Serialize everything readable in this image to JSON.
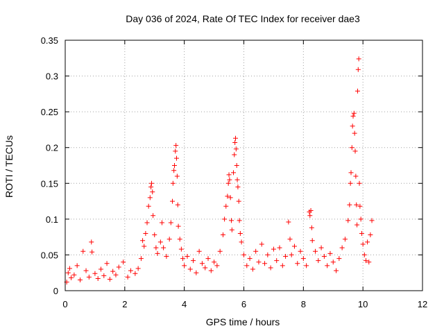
{
  "chart_data": {
    "type": "scatter",
    "title": "Day 036 of 2024, Rate Of TEC Index for receiver dae3",
    "xlabel": "GPS time / hours",
    "ylabel": "ROTI / TECUs",
    "xlim": [
      0,
      12
    ],
    "ylim": [
      0,
      0.35
    ],
    "x_ticks": [
      "0",
      "2",
      "4",
      "6",
      "8",
      "10",
      "12"
    ],
    "y_ticks": [
      "0",
      "0.05",
      "0.1",
      "0.15",
      "0.2",
      "0.25",
      "0.3",
      "0.35"
    ],
    "x_tick_values": [
      0,
      2,
      4,
      6,
      8,
      10,
      12
    ],
    "y_tick_values": [
      0,
      0.05,
      0.1,
      0.15,
      0.2,
      0.25,
      0.3,
      0.35
    ],
    "grid": true,
    "marker": "+",
    "color": "#ff0000",
    "series": [
      {
        "name": "ROTI",
        "points": [
          [
            0.05,
            0.012
          ],
          [
            0.1,
            0.025
          ],
          [
            0.15,
            0.031
          ],
          [
            0.2,
            0.018
          ],
          [
            0.3,
            0.022
          ],
          [
            0.4,
            0.035
          ],
          [
            0.5,
            0.015
          ],
          [
            0.6,
            0.055
          ],
          [
            0.7,
            0.028
          ],
          [
            0.8,
            0.019
          ],
          [
            0.88,
            0.068
          ],
          [
            0.9,
            0.054
          ],
          [
            1.0,
            0.024
          ],
          [
            1.1,
            0.017
          ],
          [
            1.2,
            0.03
          ],
          [
            1.3,
            0.021
          ],
          [
            1.4,
            0.038
          ],
          [
            1.5,
            0.016
          ],
          [
            1.6,
            0.027
          ],
          [
            1.7,
            0.022
          ],
          [
            1.8,
            0.033
          ],
          [
            1.95,
            0.04
          ],
          [
            2.1,
            0.019
          ],
          [
            2.2,
            0.028
          ],
          [
            2.35,
            0.024
          ],
          [
            2.45,
            0.031
          ],
          [
            2.55,
            0.045
          ],
          [
            2.6,
            0.07
          ],
          [
            2.65,
            0.062
          ],
          [
            2.7,
            0.08
          ],
          [
            2.75,
            0.095
          ],
          [
            2.8,
            0.118
          ],
          [
            2.85,
            0.13
          ],
          [
            2.88,
            0.145
          ],
          [
            2.9,
            0.15
          ],
          [
            2.93,
            0.138
          ],
          [
            2.95,
            0.105
          ],
          [
            3.0,
            0.078
          ],
          [
            3.05,
            0.06
          ],
          [
            3.1,
            0.052
          ],
          [
            3.2,
            0.068
          ],
          [
            3.25,
            0.095
          ],
          [
            3.3,
            0.06
          ],
          [
            3.4,
            0.048
          ],
          [
            3.5,
            0.072
          ],
          [
            3.55,
            0.095
          ],
          [
            3.6,
            0.125
          ],
          [
            3.62,
            0.15
          ],
          [
            3.65,
            0.168
          ],
          [
            3.67,
            0.175
          ],
          [
            3.7,
            0.195
          ],
          [
            3.72,
            0.203
          ],
          [
            3.74,
            0.185
          ],
          [
            3.76,
            0.16
          ],
          [
            3.78,
            0.12
          ],
          [
            3.8,
            0.09
          ],
          [
            3.85,
            0.072
          ],
          [
            3.9,
            0.058
          ],
          [
            3.95,
            0.045
          ],
          [
            4.0,
            0.035
          ],
          [
            4.1,
            0.048
          ],
          [
            4.2,
            0.03
          ],
          [
            4.3,
            0.042
          ],
          [
            4.4,
            0.025
          ],
          [
            4.5,
            0.055
          ],
          [
            4.6,
            0.038
          ],
          [
            4.7,
            0.032
          ],
          [
            4.8,
            0.045
          ],
          [
            4.9,
            0.028
          ],
          [
            5.0,
            0.04
          ],
          [
            5.1,
            0.035
          ],
          [
            5.2,
            0.055
          ],
          [
            5.3,
            0.078
          ],
          [
            5.35,
            0.1
          ],
          [
            5.4,
            0.118
          ],
          [
            5.45,
            0.132
          ],
          [
            5.48,
            0.15
          ],
          [
            5.5,
            0.162
          ],
          [
            5.52,
            0.155
          ],
          [
            5.55,
            0.13
          ],
          [
            5.58,
            0.098
          ],
          [
            5.6,
            0.085
          ],
          [
            5.65,
            0.165
          ],
          [
            5.68,
            0.19
          ],
          [
            5.7,
            0.207
          ],
          [
            5.72,
            0.213
          ],
          [
            5.74,
            0.198
          ],
          [
            5.76,
            0.175
          ],
          [
            5.78,
            0.155
          ],
          [
            5.8,
            0.145
          ],
          [
            5.83,
            0.125
          ],
          [
            5.85,
            0.098
          ],
          [
            5.88,
            0.08
          ],
          [
            5.92,
            0.068
          ],
          [
            6.0,
            0.05
          ],
          [
            6.1,
            0.035
          ],
          [
            6.2,
            0.045
          ],
          [
            6.3,
            0.03
          ],
          [
            6.4,
            0.055
          ],
          [
            6.5,
            0.04
          ],
          [
            6.6,
            0.065
          ],
          [
            6.7,
            0.038
          ],
          [
            6.8,
            0.05
          ],
          [
            6.9,
            0.032
          ],
          [
            7.0,
            0.058
          ],
          [
            7.1,
            0.042
          ],
          [
            7.2,
            0.06
          ],
          [
            7.3,
            0.035
          ],
          [
            7.4,
            0.048
          ],
          [
            7.5,
            0.096
          ],
          [
            7.55,
            0.072
          ],
          [
            7.6,
            0.05
          ],
          [
            7.7,
            0.062
          ],
          [
            7.8,
            0.038
          ],
          [
            7.9,
            0.055
          ],
          [
            8.0,
            0.045
          ],
          [
            8.1,
            0.035
          ],
          [
            8.2,
            0.11
          ],
          [
            8.22,
            0.105
          ],
          [
            8.25,
            0.112
          ],
          [
            8.28,
            0.088
          ],
          [
            8.3,
            0.07
          ],
          [
            8.4,
            0.055
          ],
          [
            8.5,
            0.042
          ],
          [
            8.6,
            0.06
          ],
          [
            8.7,
            0.048
          ],
          [
            8.8,
            0.035
          ],
          [
            8.9,
            0.052
          ],
          [
            9.0,
            0.04
          ],
          [
            9.1,
            0.028
          ],
          [
            9.2,
            0.045
          ],
          [
            9.3,
            0.06
          ],
          [
            9.4,
            0.072
          ],
          [
            9.5,
            0.098
          ],
          [
            9.55,
            0.12
          ],
          [
            9.58,
            0.15
          ],
          [
            9.6,
            0.165
          ],
          [
            9.63,
            0.2
          ],
          [
            9.65,
            0.23
          ],
          [
            9.67,
            0.244
          ],
          [
            9.7,
            0.248
          ],
          [
            9.72,
            0.22
          ],
          [
            9.74,
            0.195
          ],
          [
            9.76,
            0.16
          ],
          [
            9.78,
            0.12
          ],
          [
            9.8,
            0.092
          ],
          [
            9.82,
            0.279
          ],
          [
            9.84,
            0.309
          ],
          [
            9.86,
            0.324
          ],
          [
            9.88,
            0.15
          ],
          [
            9.9,
            0.118
          ],
          [
            9.93,
            0.1
          ],
          [
            9.96,
            0.08
          ],
          [
            10.0,
            0.065
          ],
          [
            10.05,
            0.05
          ],
          [
            10.1,
            0.042
          ],
          [
            10.15,
            0.068
          ],
          [
            10.2,
            0.04
          ],
          [
            10.25,
            0.078
          ],
          [
            10.3,
            0.098
          ]
        ]
      }
    ]
  }
}
